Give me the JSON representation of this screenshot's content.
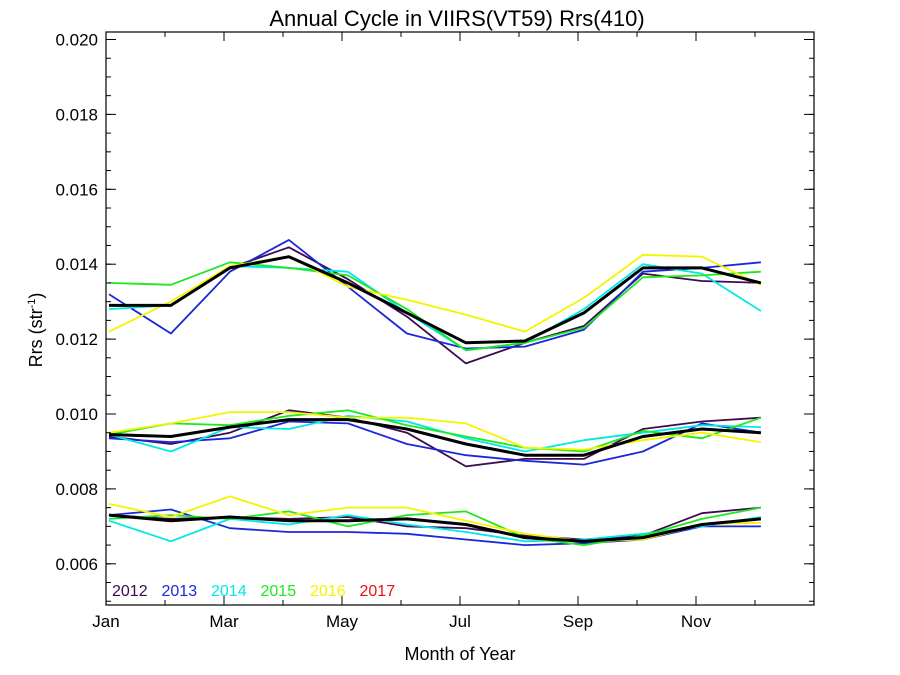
{
  "chart_data": {
    "type": "line",
    "title": "Annual Cycle in VIIRS(VT59) Rrs(410)",
    "xlabel": "Month of Year",
    "ylabel_main": "Rrs (str",
    "ylabel_sup": "-1",
    "ylabel_close": ")",
    "xlim": [
      1,
      13
    ],
    "ylim": [
      0.0049,
      0.0202
    ],
    "x_ticks": [
      {
        "value": 1,
        "label": "Jan"
      },
      {
        "value": 3,
        "label": "Mar"
      },
      {
        "value": 5,
        "label": "May"
      },
      {
        "value": 7,
        "label": "Jul"
      },
      {
        "value": 9,
        "label": "Sep"
      },
      {
        "value": 11,
        "label": "Nov"
      }
    ],
    "y_ticks": [
      {
        "value": 0.006,
        "label": "0.006"
      },
      {
        "value": 0.008,
        "label": "0.008"
      },
      {
        "value": 0.01,
        "label": "0.010"
      },
      {
        "value": 0.012,
        "label": "0.012"
      },
      {
        "value": 0.014,
        "label": "0.014"
      },
      {
        "value": 0.016,
        "label": "0.016"
      },
      {
        "value": 0.018,
        "label": "0.018"
      },
      {
        "value": 0.02,
        "label": "0.020"
      }
    ],
    "legend_placement": "bottom-left",
    "legend": [
      {
        "label": "2012",
        "color": "#3c0a50"
      },
      {
        "label": "2013",
        "color": "#1a28d8"
      },
      {
        "label": "2014",
        "color": "#00e8e8"
      },
      {
        "label": "2015",
        "color": "#1ee81e"
      },
      {
        "label": "2016",
        "color": "#f4f400"
      },
      {
        "label": "2017",
        "color": "#e81010"
      }
    ],
    "x": [
      1.05,
      2.1,
      3.1,
      4.1,
      5.1,
      6.1,
      7.1,
      8.1,
      9.1,
      10.1,
      11.1,
      12.1
    ],
    "series": [
      {
        "group": "upper",
        "year": "2012",
        "color": "#3c0a50",
        "values": [
          0.0129,
          0.0129,
          0.0139,
          0.01445,
          0.0136,
          0.0126,
          0.01135,
          0.0119,
          0.01235,
          0.01375,
          0.01355,
          0.0135
        ]
      },
      {
        "group": "upper",
        "year": "2013",
        "color": "#1a28d8",
        "values": [
          0.0132,
          0.01215,
          0.0138,
          0.01465,
          0.0134,
          0.01215,
          0.01175,
          0.0118,
          0.01225,
          0.0138,
          0.0139,
          0.01405
        ]
      },
      {
        "group": "upper",
        "year": "2014",
        "color": "#00e8e8",
        "values": [
          0.0128,
          0.0129,
          0.01395,
          0.0139,
          0.0138,
          0.0127,
          0.0117,
          0.0119,
          0.0128,
          0.014,
          0.01375,
          0.01275
        ]
      },
      {
        "group": "upper",
        "year": "2015",
        "color": "#1ee81e",
        "values": [
          0.0135,
          0.01345,
          0.01405,
          0.0139,
          0.0137,
          0.0128,
          0.0117,
          0.0119,
          0.0123,
          0.01365,
          0.0137,
          0.0138
        ]
      },
      {
        "group": "upper",
        "year": "2016",
        "color": "#f4f400",
        "values": [
          0.0122,
          0.013,
          0.01395,
          0.0142,
          0.0134,
          0.01305,
          0.01265,
          0.0122,
          0.0131,
          0.01425,
          0.0142,
          0.01345
        ]
      },
      {
        "group": "upper",
        "year": "mean",
        "color": "#000000",
        "values": [
          0.0129,
          0.0129,
          0.0139,
          0.0142,
          0.0135,
          0.0127,
          0.0119,
          0.01195,
          0.0127,
          0.0139,
          0.0139,
          0.0135
        ]
      },
      {
        "group": "middle",
        "year": "2012",
        "color": "#3c0a50",
        "values": [
          0.0094,
          0.0092,
          0.0095,
          0.0101,
          0.0099,
          0.0095,
          0.0086,
          0.0088,
          0.0088,
          0.0096,
          0.0098,
          0.0099
        ]
      },
      {
        "group": "middle",
        "year": "2013",
        "color": "#1a28d8",
        "values": [
          0.00935,
          0.00925,
          0.00935,
          0.0098,
          0.00975,
          0.0092,
          0.0089,
          0.00875,
          0.00865,
          0.009,
          0.00975,
          0.0095
        ]
      },
      {
        "group": "middle",
        "year": "2014",
        "color": "#00e8e8",
        "values": [
          0.00945,
          0.009,
          0.00965,
          0.0096,
          0.00995,
          0.0098,
          0.00935,
          0.009,
          0.0093,
          0.0095,
          0.0097,
          0.00965
        ]
      },
      {
        "group": "middle",
        "year": "2015",
        "color": "#1ee81e",
        "values": [
          0.00945,
          0.00975,
          0.0097,
          0.00995,
          0.0101,
          0.0097,
          0.0094,
          0.0091,
          0.009,
          0.00955,
          0.00935,
          0.0099
        ]
      },
      {
        "group": "middle",
        "year": "2016",
        "color": "#f4f400",
        "values": [
          0.0095,
          0.00975,
          0.01005,
          0.01005,
          0.0099,
          0.0099,
          0.00975,
          0.0091,
          0.00905,
          0.0093,
          0.0095,
          0.00925
        ]
      },
      {
        "group": "middle",
        "year": "mean",
        "color": "#000000",
        "values": [
          0.00945,
          0.0094,
          0.00965,
          0.00985,
          0.00985,
          0.0096,
          0.0092,
          0.0089,
          0.0089,
          0.0094,
          0.0096,
          0.0095
        ]
      },
      {
        "group": "lower",
        "year": "2012",
        "color": "#3c0a50",
        "values": [
          0.0073,
          0.0072,
          0.00725,
          0.0072,
          0.00725,
          0.007,
          0.00695,
          0.00675,
          0.00665,
          0.00675,
          0.00735,
          0.0075
        ]
      },
      {
        "group": "lower",
        "year": "2013",
        "color": "#1a28d8",
        "values": [
          0.0073,
          0.00745,
          0.00695,
          0.00685,
          0.00685,
          0.0068,
          0.00665,
          0.0065,
          0.00655,
          0.00665,
          0.007,
          0.007
        ]
      },
      {
        "group": "lower",
        "year": "2014",
        "color": "#00e8e8",
        "values": [
          0.00715,
          0.0066,
          0.0072,
          0.00705,
          0.0073,
          0.00705,
          0.00685,
          0.0066,
          0.00665,
          0.0068,
          0.007,
          0.00725
        ]
      },
      {
        "group": "lower",
        "year": "2015",
        "color": "#1ee81e",
        "values": [
          0.0072,
          0.0073,
          0.0072,
          0.0074,
          0.007,
          0.0073,
          0.0074,
          0.0067,
          0.0065,
          0.00675,
          0.0072,
          0.0075
        ]
      },
      {
        "group": "lower",
        "year": "2016",
        "color": "#f4f400",
        "values": [
          0.0076,
          0.00725,
          0.0078,
          0.0073,
          0.0075,
          0.0075,
          0.00715,
          0.0068,
          0.0066,
          0.00665,
          0.00705,
          0.0071
        ]
      },
      {
        "group": "lower",
        "year": "mean",
        "color": "#000000",
        "values": [
          0.0073,
          0.00715,
          0.00725,
          0.00715,
          0.00715,
          0.0072,
          0.00705,
          0.0067,
          0.0066,
          0.0067,
          0.00705,
          0.0072
        ]
      }
    ]
  }
}
